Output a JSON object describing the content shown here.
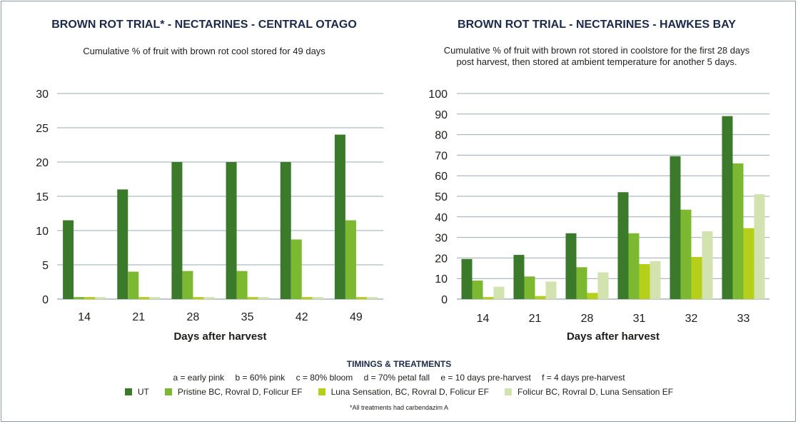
{
  "charts": {
    "left": {
      "title": "BROWN ROT TRIAL* - NECTARINES - CENTRAL OTAGO",
      "subtitle": "Cumulative % of fruit with brown rot cool stored for 49 days"
    },
    "right": {
      "title": "BROWN ROT TRIAL - NECTARINES - HAWKES BAY",
      "subtitle_line1": "Cumulative % of fruit with brown rot stored in coolstore for the first 28 days",
      "subtitle_line2": "post harvest, then stored at ambient temperature for another 5 days."
    }
  },
  "legend": {
    "title": "TIMINGS & TREATMENTS",
    "timings": [
      "a = early pink",
      "b = 60% pink",
      "c = 80% bloom",
      "d = 70% petal fall",
      "e = 10 days pre-harvest",
      "f = 4 days pre-harvest"
    ],
    "items": [
      "UT",
      "Pristine BC, Rovral D, Folicur EF",
      "Luna Sensation, BC, Rovral D, Folicur EF",
      "Folicur BC, Rovral D, Luna Sensation EF"
    ],
    "colors": [
      "#3b7a2a",
      "#7cb830",
      "#b5cf1a",
      "#d2e3b0"
    ],
    "footnote": "*All treatments had carbendazim A"
  },
  "chart_data": [
    {
      "type": "bar",
      "title": "BROWN ROT TRIAL* - NECTARINES - CENTRAL OTAGO",
      "xlabel": "Days after harvest",
      "ylabel": "",
      "categories": [
        "14",
        "21",
        "28",
        "35",
        "42",
        "49"
      ],
      "ylim": [
        0,
        30
      ],
      "yticks": [
        0,
        5,
        10,
        15,
        20,
        25,
        30
      ],
      "grid": true,
      "series": [
        {
          "name": "UT",
          "values": [
            11.5,
            16,
            20,
            20,
            20,
            24
          ]
        },
        {
          "name": "Pristine BC, Rovral D, Folicur EF",
          "values": [
            0.3,
            4,
            4.1,
            4.1,
            8.7,
            11.5
          ]
        },
        {
          "name": "Luna Sensation, BC, Rovral D, Folicur EF",
          "values": [
            0.3,
            0.3,
            0.3,
            0.3,
            0.3,
            0.3
          ]
        },
        {
          "name": "Folicur BC, Rovral D, Luna Sensation EF",
          "values": [
            0.3,
            0.3,
            0.3,
            0.3,
            0.3,
            0.3
          ]
        }
      ]
    },
    {
      "type": "bar",
      "title": "BROWN ROT TRIAL - NECTARINES - HAWKES BAY",
      "xlabel": "Days after harvest",
      "ylabel": "",
      "categories": [
        "14",
        "21",
        "28",
        "31",
        "32",
        "33"
      ],
      "ylim": [
        0,
        100
      ],
      "yticks": [
        0,
        10,
        20,
        30,
        40,
        50,
        60,
        70,
        80,
        90,
        100
      ],
      "grid": true,
      "series": [
        {
          "name": "UT",
          "values": [
            19.5,
            21.5,
            32,
            52,
            69.5,
            89
          ]
        },
        {
          "name": "Pristine BC, Rovral D, Folicur EF",
          "values": [
            9,
            11,
            15.5,
            32,
            43.5,
            66
          ]
        },
        {
          "name": "Luna Sensation, BC, Rovral D, Folicur EF",
          "values": [
            1,
            1.5,
            3,
            17,
            20.5,
            34.5
          ]
        },
        {
          "name": "Folicur BC, Rovral D, Luna Sensation EF",
          "values": [
            6,
            8.5,
            13,
            18.5,
            33,
            51
          ]
        }
      ]
    }
  ]
}
